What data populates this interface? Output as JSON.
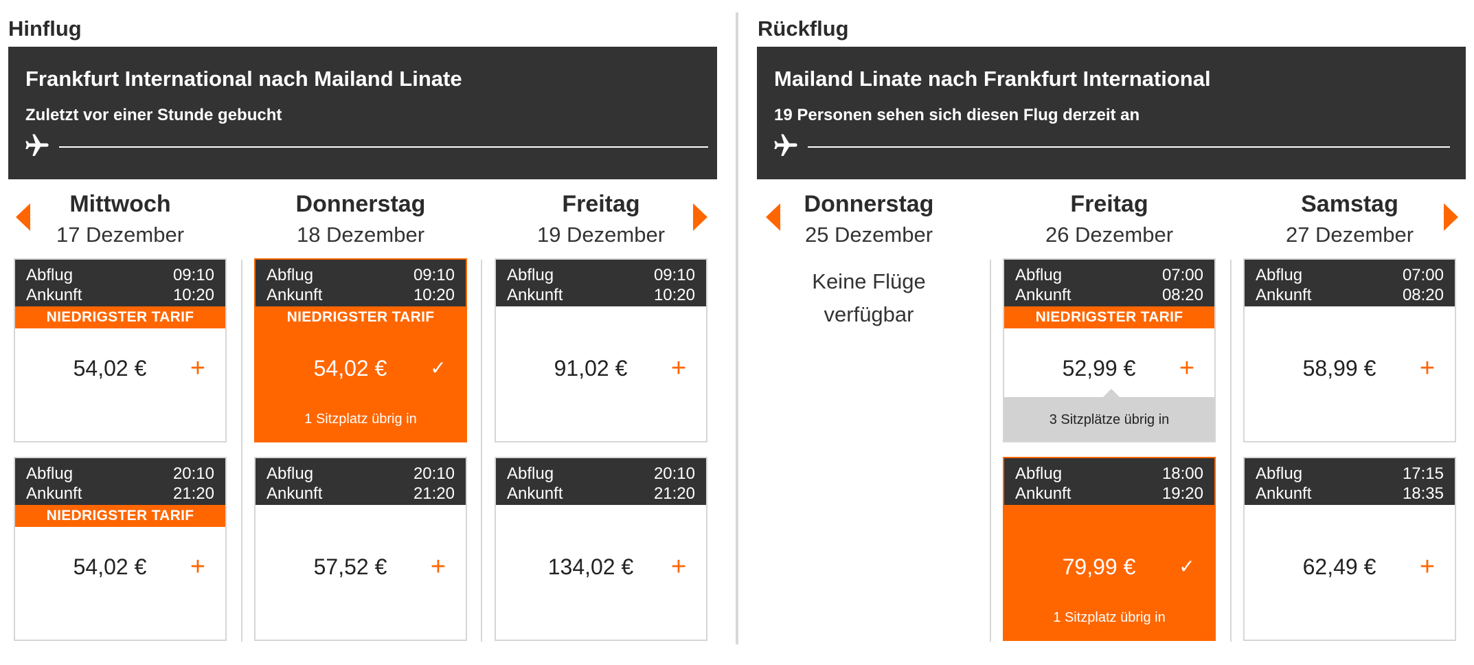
{
  "outbound": {
    "section_title": "Hinflug",
    "route_title": "Frankfurt International nach Mailand Linate",
    "route_subtitle": "Zuletzt vor einer Stunde gebucht",
    "days": [
      {
        "name": "Mittwoch",
        "date": "17 Dezember",
        "flights": [
          {
            "dep_label": "Abflug",
            "dep": "09:10",
            "arr_label": "Ankunft",
            "arr": "10:20",
            "badge": "NIEDRIGSTER TARIF",
            "price": "54,02 €",
            "selected": false,
            "seats": ""
          },
          {
            "dep_label": "Abflug",
            "dep": "20:10",
            "arr_label": "Ankunft",
            "arr": "21:20",
            "badge": "NIEDRIGSTER TARIF",
            "price": "54,02 €",
            "selected": false,
            "seats": ""
          }
        ]
      },
      {
        "name": "Donnerstag",
        "date": "18 Dezember",
        "flights": [
          {
            "dep_label": "Abflug",
            "dep": "09:10",
            "arr_label": "Ankunft",
            "arr": "10:20",
            "badge": "NIEDRIGSTER TARIF",
            "price": "54,02 €",
            "selected": true,
            "seats": "1 Sitzplatz übrig in"
          },
          {
            "dep_label": "Abflug",
            "dep": "20:10",
            "arr_label": "Ankunft",
            "arr": "21:20",
            "badge": "",
            "price": "57,52 €",
            "selected": false,
            "seats": ""
          }
        ]
      },
      {
        "name": "Freitag",
        "date": "19 Dezember",
        "flights": [
          {
            "dep_label": "Abflug",
            "dep": "09:10",
            "arr_label": "Ankunft",
            "arr": "10:20",
            "badge": "",
            "price": "91,02 €",
            "selected": false,
            "seats": ""
          },
          {
            "dep_label": "Abflug",
            "dep": "20:10",
            "arr_label": "Ankunft",
            "arr": "21:20",
            "badge": "",
            "price": "134,02 €",
            "selected": false,
            "seats": ""
          }
        ]
      }
    ]
  },
  "return": {
    "section_title": "Rückflug",
    "route_title": "Mailand Linate nach Frankfurt International",
    "route_subtitle": "19 Personen sehen sich diesen Flug derzeit an",
    "days": [
      {
        "name": "Donnerstag",
        "date": "25 Dezember",
        "no_flights_line1": "Keine Flüge",
        "no_flights_line2": "verfügbar",
        "flights": []
      },
      {
        "name": "Freitag",
        "date": "26 Dezember",
        "flights": [
          {
            "dep_label": "Abflug",
            "dep": "07:00",
            "arr_label": "Ankunft",
            "arr": "08:20",
            "badge": "NIEDRIGSTER TARIF",
            "price": "52,99 €",
            "selected": false,
            "seats": "3 Sitzplätze übrig in"
          },
          {
            "dep_label": "Abflug",
            "dep": "18:00",
            "arr_label": "Ankunft",
            "arr": "19:20",
            "badge": "",
            "price": "79,99 €",
            "selected": true,
            "seats": "1 Sitzplatz übrig in"
          }
        ]
      },
      {
        "name": "Samstag",
        "date": "27 Dezember",
        "flights": [
          {
            "dep_label": "Abflug",
            "dep": "07:00",
            "arr_label": "Ankunft",
            "arr": "08:20",
            "badge": "",
            "price": "58,99 €",
            "selected": false,
            "seats": ""
          },
          {
            "dep_label": "Abflug",
            "dep": "17:15",
            "arr_label": "Ankunft",
            "arr": "18:35",
            "badge": "",
            "price": "62,49 €",
            "selected": false,
            "seats": ""
          }
        ]
      }
    ]
  },
  "icons": {
    "plane": "plane-icon",
    "prev": "arrow-left-icon",
    "next": "arrow-right-icon",
    "add": "plus-icon",
    "selected": "checkmark-icon"
  },
  "colors": {
    "accent": "#ff6600",
    "header_bg": "#333333",
    "seats_gray": "#d2d2d2"
  }
}
